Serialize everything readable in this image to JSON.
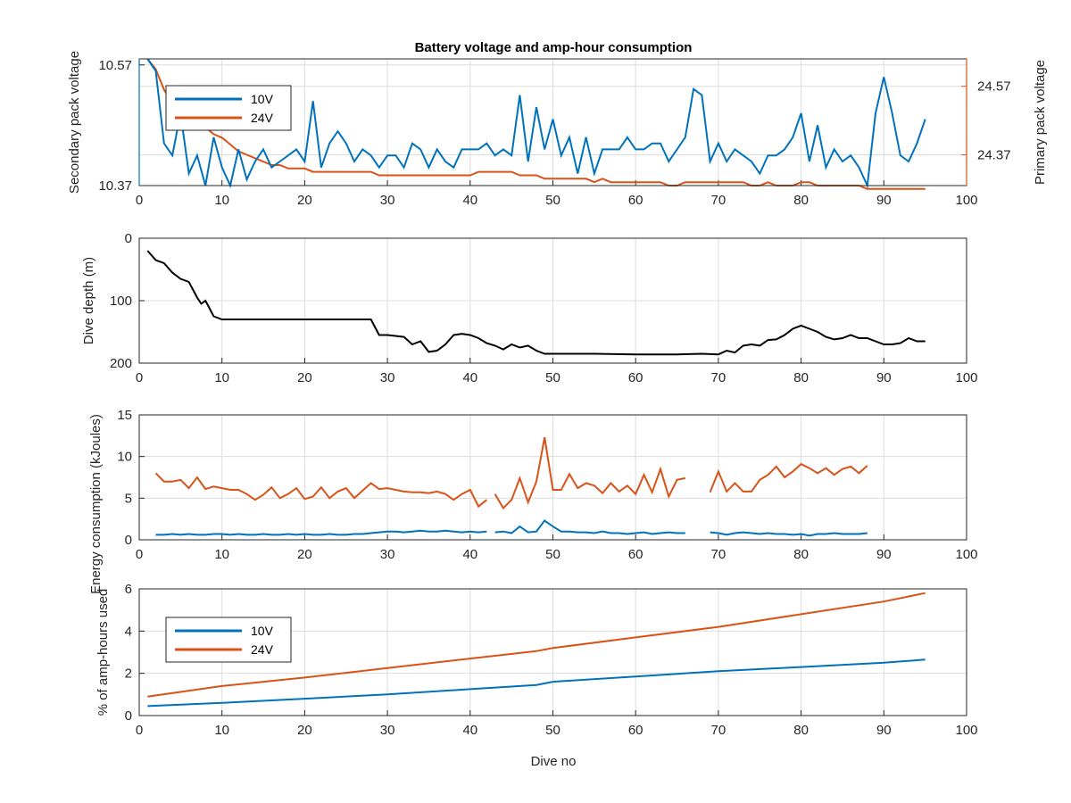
{
  "figure": {
    "xlabel": "Dive no"
  },
  "colors": {
    "s10": "#0072BD",
    "s24": "#D95319",
    "depth": "#000000"
  },
  "chart_data": [
    {
      "type": "line",
      "title": "Battery voltage and amp-hour consumption",
      "xlabel": "",
      "ylabel": "Secondary pack voltage",
      "ylabel_right": "Primary pack voltage",
      "xlim": [
        0,
        100
      ],
      "ylim_left": [
        10.37,
        10.58
      ],
      "ylim_right": [
        24.28,
        24.65
      ],
      "xticks": [
        "0",
        "10",
        "20",
        "30",
        "40",
        "50",
        "60",
        "70",
        "80",
        "90",
        "100"
      ],
      "yticks_left": [
        "10.37",
        "10.57"
      ],
      "yticks_right": [
        "24.37",
        "24.57"
      ],
      "legend": {
        "placement": "top-left",
        "entries": [
          "10V",
          "24V"
        ]
      },
      "grid": true,
      "series": [
        {
          "name": "10V",
          "axis": "left",
          "x": [
            1,
            2,
            3,
            4,
            5,
            6,
            7,
            8,
            9,
            10,
            11,
            12,
            13,
            14,
            15,
            16,
            17,
            18,
            19,
            20,
            21,
            22,
            23,
            24,
            25,
            26,
            27,
            28,
            29,
            30,
            31,
            32,
            33,
            34,
            35,
            36,
            37,
            38,
            39,
            40,
            41,
            42,
            43,
            44,
            45,
            46,
            47,
            48,
            49,
            50,
            51,
            52,
            53,
            54,
            55,
            56,
            57,
            58,
            59,
            60,
            61,
            62,
            63,
            64,
            65,
            66,
            67,
            68,
            69,
            70,
            71,
            72,
            73,
            74,
            75,
            76,
            77,
            78,
            79,
            80,
            81,
            82,
            83,
            84,
            85,
            86,
            87,
            88,
            89,
            90,
            91,
            92,
            93,
            94,
            95
          ],
          "y": [
            10.58,
            10.56,
            10.44,
            10.42,
            10.49,
            10.39,
            10.42,
            10.37,
            10.45,
            10.4,
            10.37,
            10.43,
            10.38,
            10.41,
            10.43,
            10.4,
            10.41,
            10.42,
            10.43,
            10.41,
            10.51,
            10.4,
            10.44,
            10.46,
            10.44,
            10.41,
            10.43,
            10.42,
            10.4,
            10.42,
            10.42,
            10.4,
            10.44,
            10.43,
            10.4,
            10.43,
            10.41,
            10.4,
            10.43,
            10.43,
            10.43,
            10.44,
            10.42,
            10.43,
            10.42,
            10.52,
            10.41,
            10.5,
            10.43,
            10.48,
            10.42,
            10.45,
            10.39,
            10.45,
            10.39,
            10.43,
            10.43,
            10.43,
            10.45,
            10.43,
            10.43,
            10.44,
            10.44,
            10.41,
            10.43,
            10.45,
            10.53,
            10.52,
            10.41,
            10.44,
            10.41,
            10.43,
            10.42,
            10.41,
            10.39,
            10.42,
            10.42,
            10.43,
            10.45,
            10.49,
            10.41,
            10.47,
            10.4,
            10.43,
            10.41,
            10.42,
            10.4,
            10.37,
            10.49,
            10.55,
            10.49,
            10.42,
            10.41,
            10.44,
            10.48
          ]
        },
        {
          "name": "24V",
          "axis": "right",
          "x": [
            1,
            2,
            3,
            4,
            5,
            6,
            7,
            8,
            9,
            10,
            11,
            12,
            13,
            14,
            15,
            16,
            17,
            18,
            19,
            20,
            21,
            22,
            23,
            24,
            25,
            26,
            27,
            28,
            29,
            30,
            31,
            32,
            33,
            34,
            35,
            36,
            37,
            38,
            39,
            40,
            41,
            42,
            43,
            44,
            45,
            46,
            47,
            48,
            49,
            50,
            51,
            52,
            53,
            54,
            55,
            56,
            57,
            58,
            59,
            60,
            61,
            62,
            63,
            64,
            65,
            66,
            67,
            68,
            69,
            70,
            71,
            72,
            73,
            74,
            75,
            76,
            77,
            78,
            79,
            80,
            81,
            82,
            83,
            84,
            85,
            86,
            87,
            88,
            89,
            90,
            91,
            92,
            93,
            94,
            95
          ],
          "y": [
            24.65,
            24.62,
            24.56,
            24.52,
            24.5,
            24.47,
            24.46,
            24.45,
            24.43,
            24.42,
            24.4,
            24.38,
            24.37,
            24.36,
            24.35,
            24.34,
            24.34,
            24.33,
            24.33,
            24.33,
            24.32,
            24.32,
            24.32,
            24.32,
            24.32,
            24.32,
            24.32,
            24.32,
            24.31,
            24.31,
            24.31,
            24.31,
            24.31,
            24.31,
            24.31,
            24.31,
            24.31,
            24.31,
            24.31,
            24.31,
            24.32,
            24.32,
            24.32,
            24.32,
            24.32,
            24.31,
            24.31,
            24.31,
            24.3,
            24.3,
            24.3,
            24.3,
            24.3,
            24.3,
            24.29,
            24.3,
            24.29,
            24.29,
            24.29,
            24.29,
            24.29,
            24.29,
            24.29,
            24.28,
            24.28,
            24.29,
            24.29,
            24.29,
            24.29,
            24.29,
            24.29,
            24.29,
            24.29,
            24.28,
            24.28,
            24.29,
            24.28,
            24.28,
            24.28,
            24.29,
            24.29,
            24.28,
            24.28,
            24.28,
            24.28,
            24.28,
            24.28,
            24.27,
            24.27,
            24.27,
            24.27,
            24.27,
            24.27,
            24.27,
            24.27
          ]
        }
      ]
    },
    {
      "type": "line",
      "title": "",
      "ylabel": "Dive depth (m)",
      "xlim": [
        0,
        100
      ],
      "ylim": [
        200,
        0
      ],
      "xticks": [
        "0",
        "10",
        "20",
        "30",
        "40",
        "50",
        "60",
        "70",
        "80",
        "90",
        "100"
      ],
      "yticks": [
        "0",
        "100",
        "200"
      ],
      "grid": true,
      "series": [
        {
          "name": "",
          "x": [
            1,
            2,
            3,
            4,
            5,
            6,
            7,
            7.5,
            8,
            9,
            10,
            12,
            15,
            20,
            25,
            28,
            29,
            30,
            32,
            33,
            34,
            35,
            36,
            37,
            38,
            39,
            40,
            41,
            42,
            43,
            44,
            45,
            46,
            47,
            48,
            49,
            50,
            55,
            60,
            65,
            68,
            70,
            71,
            72,
            73,
            74,
            75,
            76,
            77,
            78,
            79,
            80,
            81,
            82,
            83,
            84,
            85,
            86,
            87,
            88,
            89,
            90,
            91,
            92,
            93,
            94,
            95
          ],
          "y": [
            20,
            35,
            40,
            55,
            65,
            70,
            95,
            105,
            100,
            125,
            130,
            130,
            130,
            130,
            130,
            130,
            155,
            155,
            158,
            170,
            165,
            182,
            180,
            170,
            155,
            153,
            155,
            160,
            168,
            172,
            178,
            170,
            175,
            172,
            180,
            185,
            185,
            185,
            186,
            186,
            185,
            186,
            180,
            183,
            172,
            170,
            172,
            163,
            162,
            155,
            145,
            140,
            145,
            150,
            158,
            162,
            160,
            155,
            160,
            160,
            165,
            170,
            170,
            168,
            160,
            165,
            165
          ]
        }
      ]
    },
    {
      "type": "line",
      "title": "",
      "ylabel": "Energy consumption (kJoules)",
      "xlim": [
        0,
        100
      ],
      "ylim": [
        0,
        15
      ],
      "xticks": [
        "0",
        "10",
        "20",
        "30",
        "40",
        "50",
        "60",
        "70",
        "80",
        "90",
        "100"
      ],
      "yticks": [
        "0",
        "5",
        "10",
        "15"
      ],
      "grid": true,
      "series": [
        {
          "name": "10V",
          "x": [
            2,
            3,
            4,
            5,
            6,
            7,
            8,
            9,
            10,
            11,
            12,
            13,
            14,
            15,
            16,
            17,
            18,
            19,
            20,
            21,
            22,
            23,
            24,
            25,
            26,
            27,
            28,
            29,
            30,
            31,
            32,
            33,
            34,
            35,
            36,
            37,
            38,
            39,
            40,
            41,
            42,
            null,
            43,
            44,
            45,
            46,
            47,
            48,
            49,
            50,
            51,
            52,
            53,
            54,
            55,
            56,
            57,
            58,
            59,
            60,
            61,
            62,
            63,
            64,
            65,
            66,
            null,
            69,
            70,
            71,
            72,
            73,
            74,
            75,
            76,
            77,
            78,
            79,
            80,
            81,
            82,
            83,
            84,
            85,
            86,
            87,
            88
          ],
          "y": [
            0.6,
            0.6,
            0.7,
            0.6,
            0.7,
            0.6,
            0.6,
            0.7,
            0.7,
            0.6,
            0.7,
            0.6,
            0.6,
            0.7,
            0.6,
            0.6,
            0.7,
            0.6,
            0.7,
            0.6,
            0.6,
            0.7,
            0.6,
            0.6,
            0.7,
            0.7,
            0.8,
            0.9,
            1.0,
            1.0,
            0.9,
            1.0,
            1.1,
            1.0,
            1.0,
            1.1,
            1.0,
            0.9,
            1.0,
            0.9,
            1.0,
            null,
            0.9,
            1.0,
            0.8,
            1.6,
            0.9,
            1.0,
            2.3,
            1.6,
            1.0,
            1.0,
            0.9,
            0.9,
            0.8,
            1.0,
            0.8,
            0.8,
            0.7,
            0.8,
            0.9,
            0.7,
            0.8,
            0.9,
            0.8,
            0.8,
            null,
            0.9,
            0.8,
            0.6,
            0.8,
            0.9,
            0.8,
            0.7,
            0.8,
            0.7,
            0.7,
            0.6,
            0.7,
            0.5,
            0.7,
            0.7,
            0.8,
            0.7,
            0.7,
            0.7,
            0.8
          ]
        },
        {
          "name": "24V",
          "x": [
            2,
            3,
            4,
            5,
            6,
            7,
            8,
            9,
            10,
            11,
            12,
            13,
            14,
            15,
            16,
            17,
            18,
            19,
            20,
            21,
            22,
            23,
            24,
            25,
            26,
            27,
            28,
            29,
            30,
            31,
            32,
            33,
            34,
            35,
            36,
            37,
            38,
            39,
            40,
            41,
            42,
            null,
            43,
            44,
            45,
            46,
            47,
            48,
            49,
            50,
            51,
            52,
            53,
            54,
            55,
            56,
            57,
            58,
            59,
            60,
            61,
            62,
            63,
            64,
            65,
            66,
            null,
            69,
            70,
            71,
            72,
            73,
            74,
            75,
            76,
            77,
            78,
            79,
            80,
            81,
            82,
            83,
            84,
            85,
            86,
            87,
            88
          ],
          "y": [
            8.0,
            7.0,
            7.0,
            7.2,
            6.2,
            7.5,
            6.1,
            6.4,
            6.2,
            6.0,
            6.0,
            5.5,
            4.8,
            5.4,
            6.3,
            5.0,
            5.5,
            6.2,
            4.9,
            5.2,
            6.3,
            5.0,
            5.8,
            6.2,
            5.0,
            5.9,
            6.8,
            6.1,
            6.2,
            6.0,
            5.8,
            5.7,
            5.7,
            5.6,
            5.8,
            5.5,
            4.8,
            5.5,
            6.0,
            4.0,
            4.8,
            null,
            5.5,
            3.8,
            4.8,
            7.4,
            4.5,
            7.0,
            12.3,
            6.0,
            6.0,
            7.9,
            6.2,
            6.8,
            6.5,
            5.6,
            6.8,
            5.8,
            6.5,
            5.5,
            7.8,
            5.7,
            8.5,
            5.2,
            7.2,
            7.4,
            null,
            5.7,
            8.2,
            5.8,
            6.8,
            5.8,
            5.8,
            7.2,
            7.8,
            8.8,
            7.5,
            8.2,
            9.1,
            8.6,
            8.0,
            8.6,
            7.8,
            8.5,
            8.8,
            8.0,
            8.9
          ]
        }
      ]
    },
    {
      "type": "line",
      "title": "",
      "xlabel": "Dive no",
      "ylabel": "% of amp-hours used",
      "xlim": [
        0,
        100
      ],
      "ylim": [
        0,
        6
      ],
      "xticks": [
        "0",
        "10",
        "20",
        "30",
        "40",
        "50",
        "60",
        "70",
        "80",
        "90",
        "100"
      ],
      "yticks": [
        "0",
        "2",
        "4",
        "6"
      ],
      "legend": {
        "placement": "top-left",
        "entries": [
          "10V",
          "24V"
        ]
      },
      "grid": true,
      "series": [
        {
          "name": "10V",
          "x": [
            1,
            10,
            20,
            30,
            40,
            48,
            50,
            60,
            70,
            80,
            90,
            95
          ],
          "y": [
            0.45,
            0.6,
            0.8,
            1.0,
            1.25,
            1.45,
            1.6,
            1.85,
            2.1,
            2.3,
            2.5,
            2.65
          ]
        },
        {
          "name": "24V",
          "x": [
            1,
            10,
            20,
            30,
            40,
            48,
            50,
            60,
            70,
            80,
            90,
            95
          ],
          "y": [
            0.9,
            1.4,
            1.8,
            2.25,
            2.7,
            3.05,
            3.2,
            3.7,
            4.2,
            4.8,
            5.4,
            5.8
          ]
        }
      ]
    }
  ]
}
